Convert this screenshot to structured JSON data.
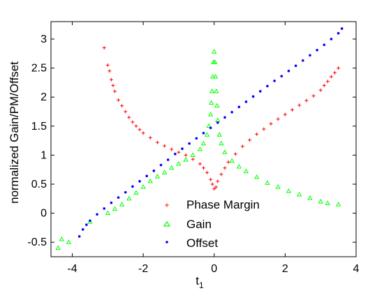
{
  "chart_data": {
    "type": "scatter",
    "xlabel": "t",
    "xlabel_subscript": "1",
    "ylabel": "normalized Gain/PM/Offset",
    "xlim": [
      -4.6,
      4
    ],
    "ylim": [
      -0.75,
      3.3
    ],
    "xticks": [
      -4,
      -2,
      0,
      2,
      4
    ],
    "yticks": [
      -0.5,
      0,
      0.5,
      1,
      1.5,
      2,
      2.5,
      3
    ],
    "grid": false,
    "legend_position": "lower-center",
    "series": [
      {
        "name": "Phase Margin",
        "marker": "plus",
        "color": "#ff0000",
        "values": [
          [
            -3.1,
            2.85
          ],
          [
            -3.0,
            2.55
          ],
          [
            -2.95,
            2.45
          ],
          [
            -2.9,
            2.3
          ],
          [
            -2.85,
            2.2
          ],
          [
            -2.8,
            2.1
          ],
          [
            -2.7,
            1.95
          ],
          [
            -2.6,
            1.85
          ],
          [
            -2.5,
            1.75
          ],
          [
            -2.4,
            1.65
          ],
          [
            -2.3,
            1.57
          ],
          [
            -2.2,
            1.5
          ],
          [
            -2.1,
            1.44
          ],
          [
            -2.0,
            1.38
          ],
          [
            -1.8,
            1.3
          ],
          [
            -1.6,
            1.22
          ],
          [
            -1.4,
            1.16
          ],
          [
            -1.2,
            1.1
          ],
          [
            -1.0,
            1.05
          ],
          [
            -0.8,
            1.0
          ],
          [
            -0.6,
            0.93
          ],
          [
            -0.4,
            0.85
          ],
          [
            -0.3,
            0.78
          ],
          [
            -0.2,
            0.7
          ],
          [
            -0.1,
            0.58
          ],
          [
            -0.05,
            0.5
          ],
          [
            0.0,
            0.42
          ],
          [
            0.05,
            0.45
          ],
          [
            0.1,
            0.55
          ],
          [
            0.2,
            0.67
          ],
          [
            0.3,
            0.78
          ],
          [
            0.4,
            0.88
          ],
          [
            0.6,
            1.02
          ],
          [
            0.8,
            1.15
          ],
          [
            1.0,
            1.26
          ],
          [
            1.2,
            1.36
          ],
          [
            1.4,
            1.45
          ],
          [
            1.6,
            1.54
          ],
          [
            1.8,
            1.62
          ],
          [
            2.0,
            1.7
          ],
          [
            2.2,
            1.78
          ],
          [
            2.4,
            1.86
          ],
          [
            2.6,
            1.94
          ],
          [
            2.8,
            2.02
          ],
          [
            3.0,
            2.12
          ],
          [
            3.1,
            2.2
          ],
          [
            3.2,
            2.27
          ],
          [
            3.3,
            2.35
          ],
          [
            3.4,
            2.42
          ],
          [
            3.5,
            2.5
          ]
        ]
      },
      {
        "name": "Gain",
        "marker": "triangle",
        "color": "#00ff00",
        "values": [
          [
            -4.4,
            -0.6
          ],
          [
            -4.3,
            -0.45
          ],
          [
            -4.1,
            -0.5
          ],
          [
            -3.5,
            -0.15
          ],
          [
            -3.0,
            0.0
          ],
          [
            -2.8,
            0.07
          ],
          [
            -2.6,
            0.15
          ],
          [
            -2.4,
            0.25
          ],
          [
            -2.2,
            0.35
          ],
          [
            -2.0,
            0.45
          ],
          [
            -1.8,
            0.55
          ],
          [
            -1.6,
            0.63
          ],
          [
            -1.4,
            0.7
          ],
          [
            -1.2,
            0.78
          ],
          [
            -1.0,
            0.85
          ],
          [
            -0.8,
            0.92
          ],
          [
            -0.6,
            1.0
          ],
          [
            -0.4,
            1.1
          ],
          [
            -0.3,
            1.2
          ],
          [
            -0.2,
            1.35
          ],
          [
            -0.15,
            1.5
          ],
          [
            -0.1,
            1.7
          ],
          [
            -0.08,
            1.9
          ],
          [
            -0.06,
            2.1
          ],
          [
            -0.04,
            2.35
          ],
          [
            -0.02,
            2.6
          ],
          [
            0.0,
            2.78
          ],
          [
            0.02,
            2.6
          ],
          [
            0.04,
            2.35
          ],
          [
            0.06,
            2.1
          ],
          [
            0.08,
            1.85
          ],
          [
            0.1,
            1.6
          ],
          [
            0.15,
            1.35
          ],
          [
            0.2,
            1.2
          ],
          [
            0.3,
            1.05
          ],
          [
            0.5,
            0.9
          ],
          [
            0.7,
            0.8
          ],
          [
            0.9,
            0.72
          ],
          [
            1.2,
            0.62
          ],
          [
            1.5,
            0.52
          ],
          [
            1.8,
            0.45
          ],
          [
            2.1,
            0.38
          ],
          [
            2.4,
            0.32
          ],
          [
            2.7,
            0.26
          ],
          [
            3.0,
            0.2
          ],
          [
            3.2,
            0.17
          ],
          [
            3.5,
            0.15
          ]
        ]
      },
      {
        "name": "Offset",
        "marker": "dot",
        "color": "#0000ff",
        "values": [
          [
            -3.8,
            -0.4
          ],
          [
            -3.7,
            -0.28
          ],
          [
            -3.6,
            -0.2
          ],
          [
            -3.5,
            -0.13
          ],
          [
            -3.3,
            -0.02
          ],
          [
            -3.1,
            0.08
          ],
          [
            -2.9,
            0.18
          ],
          [
            -2.7,
            0.27
          ],
          [
            -2.5,
            0.36
          ],
          [
            -2.3,
            0.46
          ],
          [
            -2.1,
            0.55
          ],
          [
            -1.9,
            0.64
          ],
          [
            -1.7,
            0.73
          ],
          [
            -1.5,
            0.83
          ],
          [
            -1.3,
            0.92
          ],
          [
            -1.1,
            1.02
          ],
          [
            -0.9,
            1.11
          ],
          [
            -0.7,
            1.2
          ],
          [
            -0.5,
            1.29
          ],
          [
            -0.3,
            1.38
          ],
          [
            -0.1,
            1.47
          ],
          [
            0.1,
            1.56
          ],
          [
            0.3,
            1.65
          ],
          [
            0.5,
            1.74
          ],
          [
            0.7,
            1.83
          ],
          [
            0.9,
            1.92
          ],
          [
            1.1,
            2.01
          ],
          [
            1.3,
            2.1
          ],
          [
            1.5,
            2.19
          ],
          [
            1.7,
            2.28
          ],
          [
            1.9,
            2.36
          ],
          [
            2.1,
            2.45
          ],
          [
            2.3,
            2.54
          ],
          [
            2.5,
            2.63
          ],
          [
            2.7,
            2.72
          ],
          [
            2.9,
            2.81
          ],
          [
            3.1,
            2.9
          ],
          [
            3.3,
            3.0
          ],
          [
            3.5,
            3.1
          ],
          [
            3.6,
            3.18
          ]
        ]
      }
    ]
  }
}
